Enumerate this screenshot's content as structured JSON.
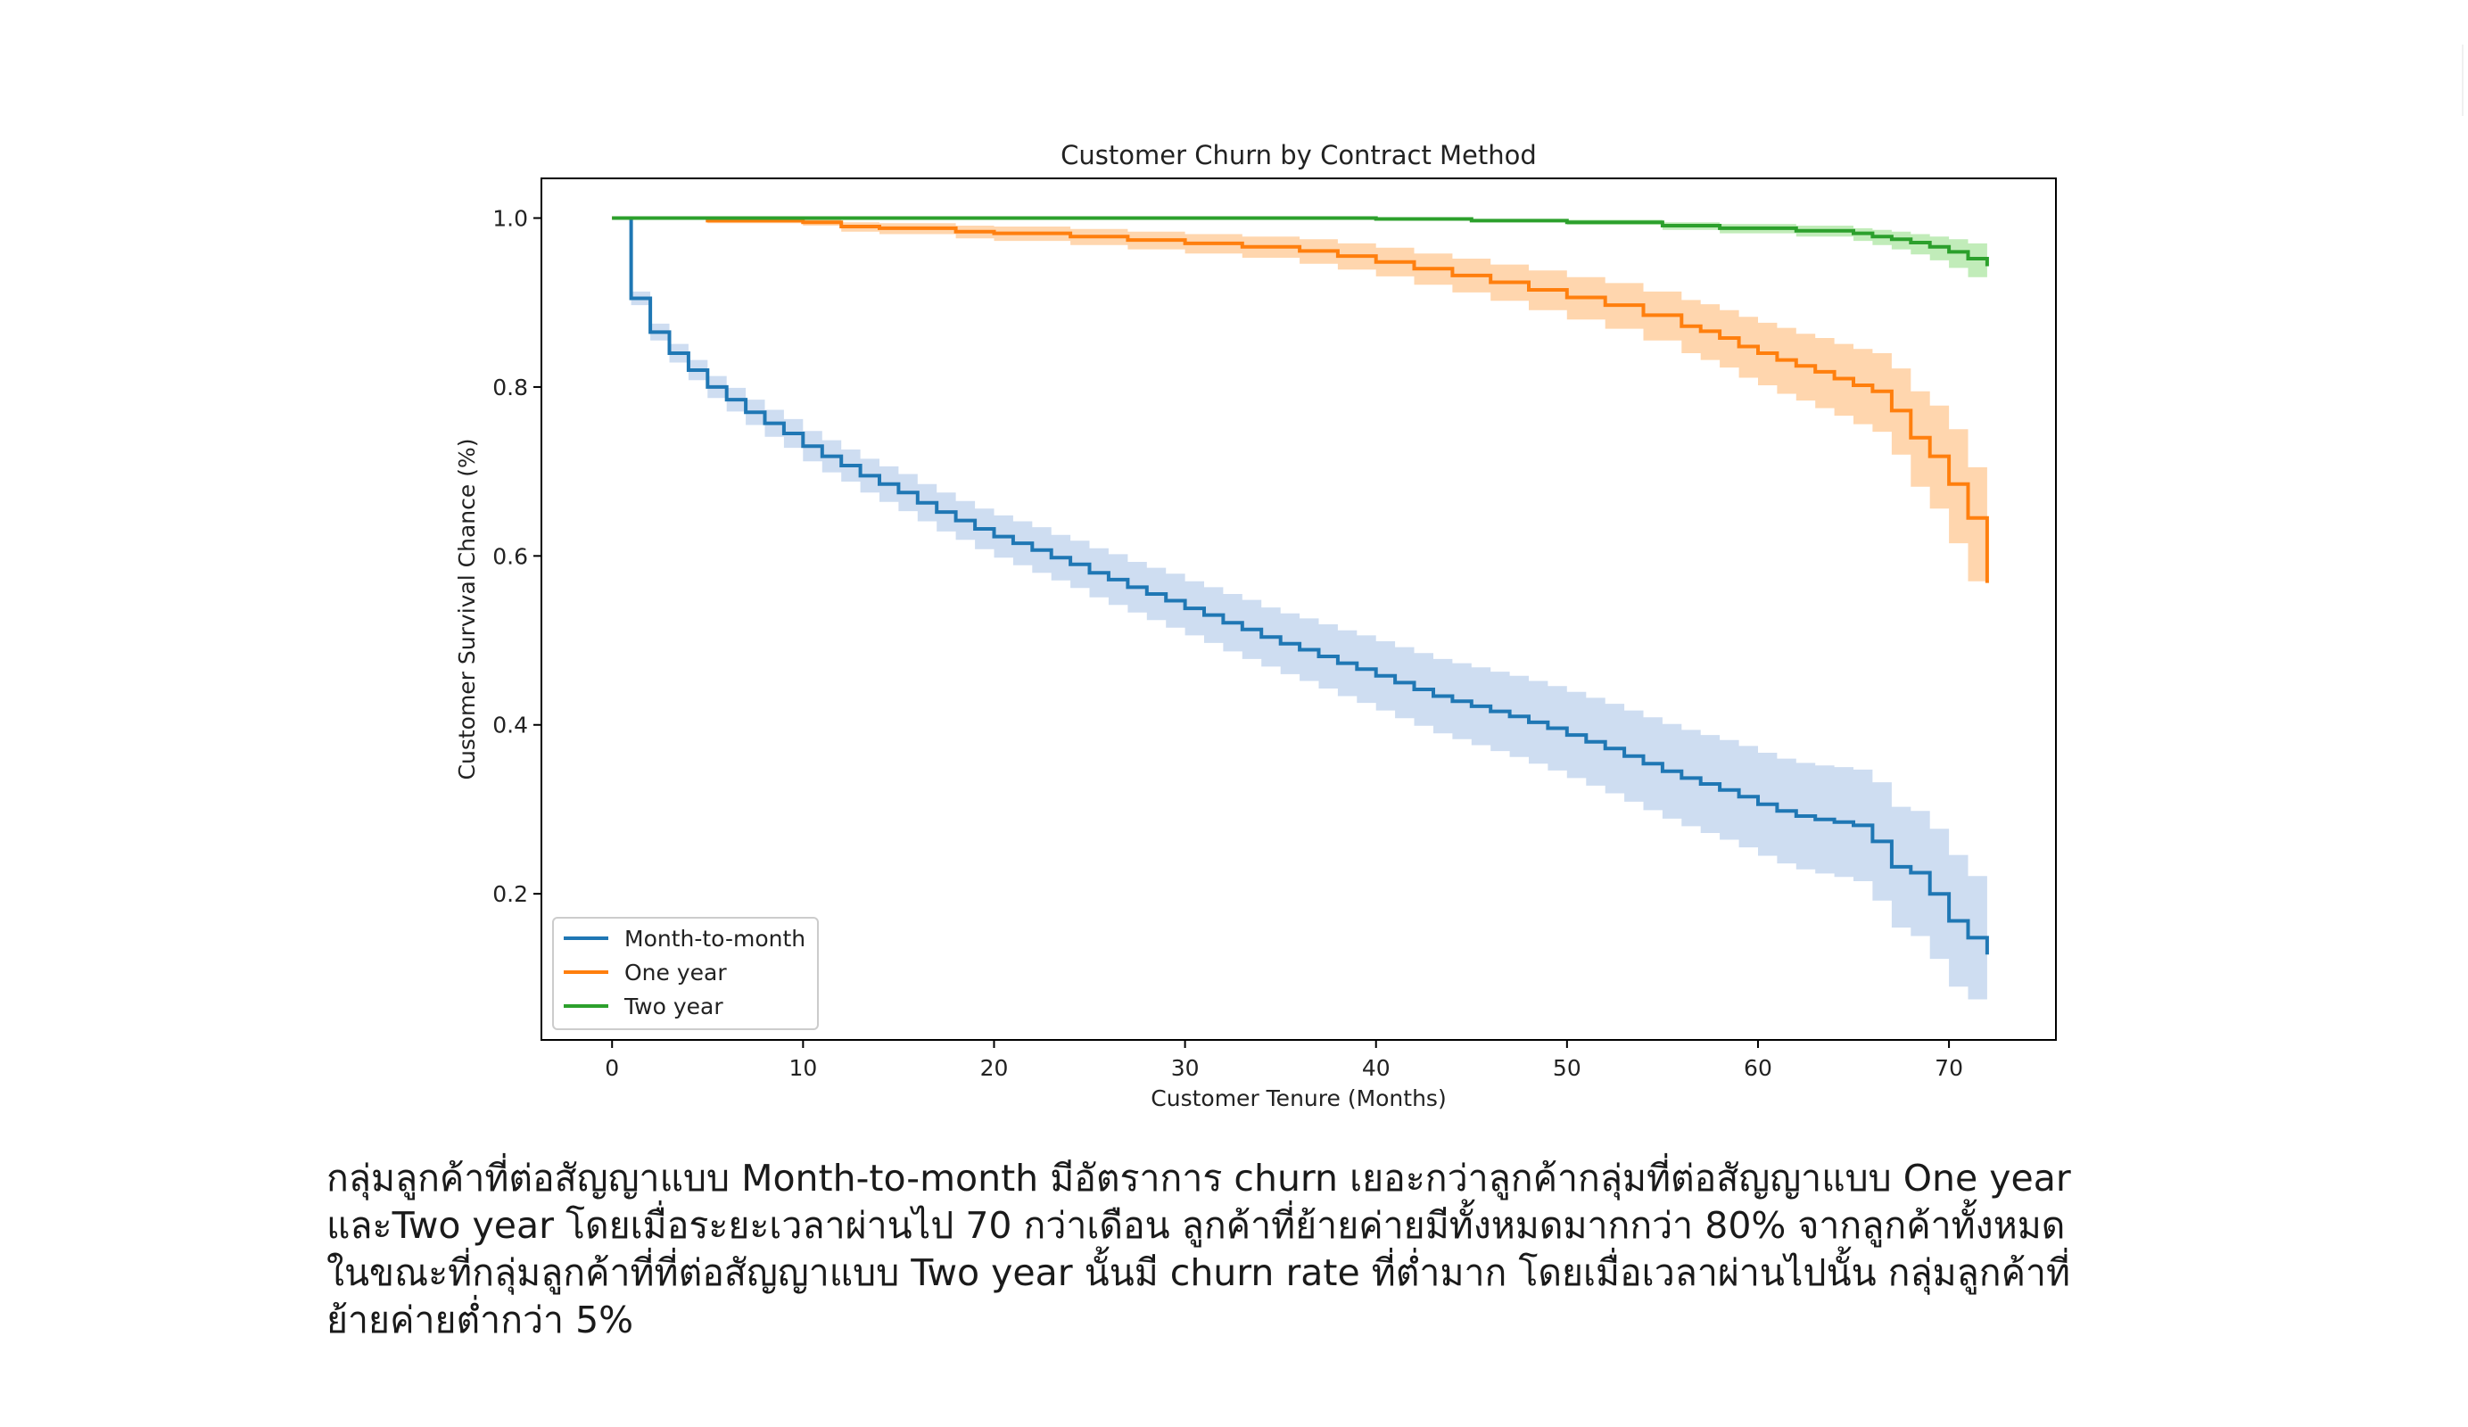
{
  "chart_data": {
    "type": "line",
    "title": "Customer Churn by Contract Method",
    "xlabel": "Customer Tenure (Months)",
    "ylabel": "Customer Survival Chance (%)",
    "xlim": [
      -3.7,
      75.6
    ],
    "ylim": [
      0.027,
      1.047
    ],
    "xticks": [
      0,
      10,
      20,
      30,
      40,
      50,
      60,
      70
    ],
    "yticks": [
      0.2,
      0.4,
      0.6,
      0.8,
      1.0
    ],
    "xtick_labels": [
      "0",
      "10",
      "20",
      "30",
      "40",
      "50",
      "60",
      "70"
    ],
    "ytick_labels": [
      "0.2",
      "0.4",
      "0.6",
      "0.8",
      "1.0"
    ],
    "grid": false,
    "legend_position": "lower-left",
    "confidence_bands": true,
    "step_function": true,
    "series": [
      {
        "name": "Month-to-month",
        "color": "#1f77b4",
        "band_color": "#aec7e8",
        "x": [
          0,
          1,
          2,
          3,
          4,
          5,
          6,
          7,
          8,
          9,
          10,
          11,
          12,
          13,
          14,
          15,
          16,
          17,
          18,
          19,
          20,
          21,
          22,
          23,
          24,
          25,
          26,
          27,
          28,
          29,
          30,
          31,
          32,
          33,
          34,
          35,
          36,
          37,
          38,
          39,
          40,
          41,
          42,
          43,
          44,
          45,
          46,
          47,
          48,
          49,
          50,
          51,
          52,
          53,
          54,
          55,
          56,
          57,
          58,
          59,
          60,
          61,
          62,
          63,
          64,
          65,
          66,
          67,
          68,
          69,
          70,
          71,
          72
        ],
        "y": [
          1.0,
          0.905,
          0.865,
          0.84,
          0.82,
          0.8,
          0.785,
          0.77,
          0.757,
          0.745,
          0.73,
          0.718,
          0.707,
          0.695,
          0.685,
          0.675,
          0.663,
          0.652,
          0.642,
          0.632,
          0.623,
          0.615,
          0.607,
          0.598,
          0.59,
          0.58,
          0.572,
          0.563,
          0.555,
          0.547,
          0.538,
          0.53,
          0.521,
          0.513,
          0.504,
          0.496,
          0.489,
          0.481,
          0.473,
          0.466,
          0.458,
          0.45,
          0.442,
          0.434,
          0.428,
          0.422,
          0.416,
          0.41,
          0.403,
          0.396,
          0.388,
          0.38,
          0.372,
          0.363,
          0.354,
          0.345,
          0.337,
          0.33,
          0.323,
          0.315,
          0.306,
          0.298,
          0.292,
          0.288,
          0.285,
          0.281,
          0.262,
          0.232,
          0.225,
          0.2,
          0.168,
          0.148,
          0.128
        ],
        "ci_lower": [
          1.0,
          0.897,
          0.855,
          0.829,
          0.808,
          0.787,
          0.771,
          0.755,
          0.741,
          0.728,
          0.712,
          0.699,
          0.688,
          0.675,
          0.664,
          0.653,
          0.641,
          0.629,
          0.619,
          0.608,
          0.598,
          0.589,
          0.58,
          0.571,
          0.562,
          0.551,
          0.542,
          0.533,
          0.524,
          0.515,
          0.506,
          0.497,
          0.487,
          0.478,
          0.469,
          0.46,
          0.452,
          0.443,
          0.434,
          0.426,
          0.417,
          0.408,
          0.399,
          0.39,
          0.383,
          0.376,
          0.369,
          0.362,
          0.354,
          0.346,
          0.337,
          0.328,
          0.319,
          0.309,
          0.299,
          0.289,
          0.28,
          0.272,
          0.264,
          0.255,
          0.245,
          0.236,
          0.229,
          0.224,
          0.22,
          0.215,
          0.192,
          0.16,
          0.15,
          0.123,
          0.09,
          0.075,
          0.07
        ],
        "ci_upper": [
          1.0,
          0.913,
          0.875,
          0.851,
          0.832,
          0.813,
          0.799,
          0.785,
          0.773,
          0.762,
          0.748,
          0.737,
          0.726,
          0.715,
          0.706,
          0.697,
          0.685,
          0.675,
          0.665,
          0.656,
          0.648,
          0.641,
          0.634,
          0.625,
          0.618,
          0.609,
          0.602,
          0.593,
          0.586,
          0.579,
          0.57,
          0.563,
          0.555,
          0.548,
          0.539,
          0.532,
          0.526,
          0.519,
          0.512,
          0.506,
          0.499,
          0.492,
          0.485,
          0.478,
          0.473,
          0.468,
          0.463,
          0.458,
          0.452,
          0.446,
          0.439,
          0.432,
          0.425,
          0.417,
          0.409,
          0.401,
          0.394,
          0.388,
          0.382,
          0.375,
          0.367,
          0.36,
          0.355,
          0.352,
          0.35,
          0.347,
          0.332,
          0.303,
          0.298,
          0.277,
          0.246,
          0.221,
          0.198
        ]
      },
      {
        "name": "One year",
        "color": "#ff7f0e",
        "band_color": "#ffbb78",
        "x": [
          0,
          5,
          10,
          12,
          14,
          18,
          20,
          24,
          27,
          30,
          33,
          36,
          38,
          40,
          42,
          44,
          46,
          48,
          50,
          52,
          54,
          56,
          57,
          58,
          59,
          60,
          61,
          62,
          63,
          64,
          65,
          66,
          67,
          68,
          69,
          70,
          71,
          72
        ],
        "y": [
          1.0,
          0.997,
          0.995,
          0.99,
          0.988,
          0.984,
          0.982,
          0.978,
          0.974,
          0.97,
          0.966,
          0.961,
          0.955,
          0.948,
          0.94,
          0.932,
          0.924,
          0.915,
          0.906,
          0.897,
          0.885,
          0.872,
          0.866,
          0.858,
          0.848,
          0.84,
          0.832,
          0.825,
          0.818,
          0.81,
          0.802,
          0.795,
          0.772,
          0.74,
          0.718,
          0.685,
          0.645,
          0.568
        ],
        "ci_lower": [
          1.0,
          0.994,
          0.991,
          0.984,
          0.981,
          0.976,
          0.973,
          0.968,
          0.963,
          0.958,
          0.953,
          0.946,
          0.939,
          0.931,
          0.921,
          0.912,
          0.902,
          0.891,
          0.88,
          0.869,
          0.855,
          0.84,
          0.832,
          0.823,
          0.811,
          0.802,
          0.792,
          0.784,
          0.775,
          0.766,
          0.756,
          0.747,
          0.72,
          0.682,
          0.656,
          0.615,
          0.57,
          0.445
        ],
        "ci_upper": [
          1.0,
          0.999,
          0.998,
          0.995,
          0.994,
          0.991,
          0.99,
          0.987,
          0.984,
          0.981,
          0.978,
          0.975,
          0.97,
          0.965,
          0.958,
          0.952,
          0.945,
          0.938,
          0.93,
          0.923,
          0.913,
          0.903,
          0.898,
          0.891,
          0.883,
          0.876,
          0.87,
          0.863,
          0.858,
          0.851,
          0.845,
          0.84,
          0.822,
          0.795,
          0.778,
          0.75,
          0.705,
          0.655
        ]
      },
      {
        "name": "Two year",
        "color": "#2ca02c",
        "band_color": "#98df8a",
        "x": [
          0,
          20,
          40,
          45,
          50,
          55,
          58,
          62,
          65,
          66,
          67,
          68,
          69,
          70,
          71,
          72
        ],
        "y": [
          1.0,
          1.0,
          0.999,
          0.997,
          0.995,
          0.991,
          0.988,
          0.985,
          0.982,
          0.978,
          0.975,
          0.971,
          0.966,
          0.96,
          0.952,
          0.943
        ],
        "ci_lower": [
          1.0,
          1.0,
          0.998,
          0.995,
          0.992,
          0.986,
          0.982,
          0.978,
          0.973,
          0.968,
          0.963,
          0.957,
          0.95,
          0.941,
          0.93,
          0.912
        ],
        "ci_upper": [
          1.0,
          1.0,
          1.0,
          0.999,
          0.998,
          0.995,
          0.993,
          0.991,
          0.988,
          0.986,
          0.984,
          0.981,
          0.978,
          0.975,
          0.97,
          0.965
        ]
      }
    ]
  },
  "caption": {
    "lines": [
      "กลุ่มลูกค้าที่ต่อสัญญาแบบ Month-to-month มีอัตราการ churn เยอะกว่าลูกค้ากลุ่มที่ต่อสัญญาแบบ One year",
      "และTwo year โดยเมื่อระยะเวลาผ่านไป 70 กว่าเดือน ลูกค้าที่ย้ายค่ายมีทั้งหมดมากกว่า 80% จากลูกค้าทั้งหมด",
      "ในขณะที่กลุ่มลูกค้าที่ที่ต่อสัญญาแบบ Two year นั้นมี churn rate ที่ต่ำมาก โดยเมื่อเวลาผ่านไปนั้น กลุ่มลูกค้าที่",
      "ย้ายค่ายต่ำกว่า 5%"
    ]
  }
}
